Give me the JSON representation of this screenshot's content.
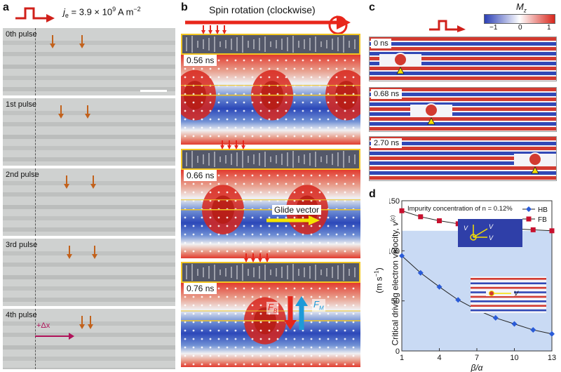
{
  "panels": {
    "a": {
      "label": "a",
      "current_density": "j",
      "current_density_sub": "e",
      "current_density_value": "= 3.9 × 10",
      "current_density_exp": "9",
      "current_density_unit": "A m",
      "current_density_unit_exp": "−2",
      "frames": [
        {
          "label": "0th pulse"
        },
        {
          "label": "1st pulse"
        },
        {
          "label": "2nd pulse"
        },
        {
          "label": "3rd pulse"
        },
        {
          "label": "4th pulse"
        }
      ],
      "delta_label": "+Δx"
    },
    "b": {
      "label": "b",
      "title": "Spin rotation (clockwise)",
      "times": [
        "0.56 ns",
        "0.66 ns",
        "0.76 ns"
      ],
      "glide_label": "Glide vector",
      "force_b": "F",
      "force_b_sub": "B",
      "force_m": "F",
      "force_m_sub": "M"
    },
    "c": {
      "label": "c",
      "colorbar_title": "M",
      "colorbar_title_sub": "z",
      "colorbar_ticks": [
        "−1",
        "0",
        "1"
      ],
      "times": [
        "0 ns",
        "0.68 ns",
        "2.70 ns"
      ]
    },
    "d": {
      "label": "d",
      "annotation": "Impurity concentration of",
      "annotation_n": "n",
      "annotation_value": "= 0.12%",
      "legend": [
        {
          "name": "HB",
          "color": "#2a5bd7"
        },
        {
          "name": "FB",
          "color": "#c8102e"
        }
      ],
      "ylabel": "Critical driving electron velocity,",
      "ylabel_sym": "v",
      "ylabel_sup": "(c)",
      "yunit": "(m s",
      "yunit_sup": "−1",
      "yunit_close": ")",
      "xlabel": "β/α",
      "inset_v1": "V",
      "inset_v2": "V",
      "inset_v3": "V",
      "inset_v4": "V"
    }
  },
  "chart_data": {
    "type": "line",
    "x": [
      1,
      2.5,
      4,
      5.5,
      7,
      8.5,
      10,
      11.5,
      13
    ],
    "xticks": [
      "1",
      "4",
      "7",
      "10",
      "13"
    ],
    "xlim": [
      1,
      13
    ],
    "ylim": [
      0,
      150
    ],
    "yticks": [
      "0",
      "50",
      "100",
      "150"
    ],
    "series": [
      {
        "name": "HB",
        "values": [
          95,
          78,
          64,
          51,
          41,
          33,
          27,
          21,
          17
        ],
        "color": "#2a5bd7",
        "marker": "diamond"
      },
      {
        "name": "FB",
        "values": [
          140,
          134,
          130,
          127,
          125,
          123,
          122,
          121,
          120
        ],
        "color": "#c8102e",
        "marker": "square"
      }
    ],
    "legend": "top-right"
  }
}
